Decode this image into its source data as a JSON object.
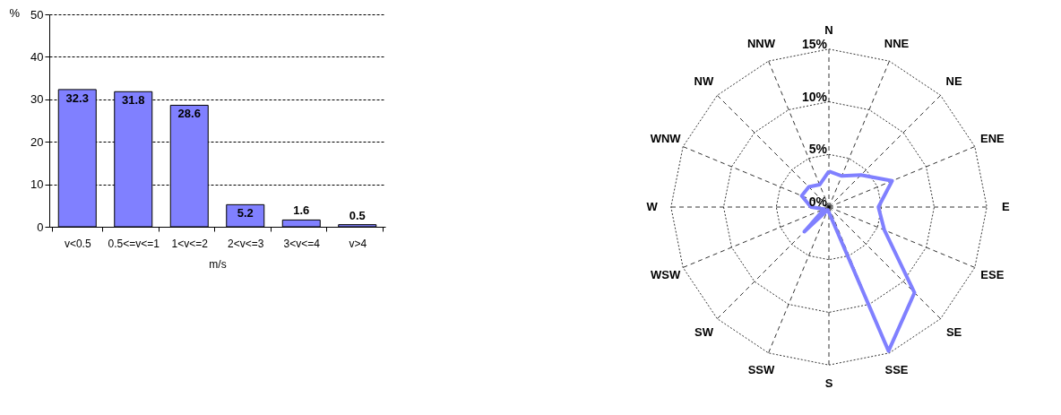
{
  "chart_data": [
    {
      "type": "bar",
      "categories": [
        "v<0.5",
        "0.5<=v<=1",
        "1<v<=2",
        "2<v<=3",
        "3<v<=4",
        "v>4"
      ],
      "values": [
        32.3,
        31.8,
        28.6,
        5.2,
        1.6,
        0.5
      ],
      "color": "#8080ff",
      "xlabel": "m/s",
      "ylabel": "%",
      "ylim": [
        0,
        50
      ],
      "yticks": [
        0,
        10,
        20,
        30,
        40,
        50
      ],
      "grid": "y",
      "data_labels": true
    },
    {
      "type": "radar",
      "categories": [
        "N",
        "NNE",
        "NE",
        "ENE",
        "E",
        "ESE",
        "SE",
        "SSE",
        "S",
        "SSW",
        "SW",
        "WSW",
        "W",
        "WNW",
        "NW",
        "NNW"
      ],
      "series": [
        {
          "color": "#8080ff",
          "values": [
            3.4,
            3.2,
            4.3,
            6.5,
            4.7,
            5.7,
            11.5,
            14.8,
            0.5,
            0.3,
            3.3,
            0.5,
            1.7,
            2.8,
            2.7,
            2.3
          ]
        }
      ],
      "ylim": [
        0,
        15
      ],
      "yticks": [
        {
          "value": 0,
          "label": "0%"
        },
        {
          "value": 5,
          "label": "5%"
        },
        {
          "value": 10,
          "label": "10%"
        },
        {
          "value": 15,
          "label": "15%"
        }
      ],
      "grid": true,
      "line_style": "solid"
    }
  ]
}
